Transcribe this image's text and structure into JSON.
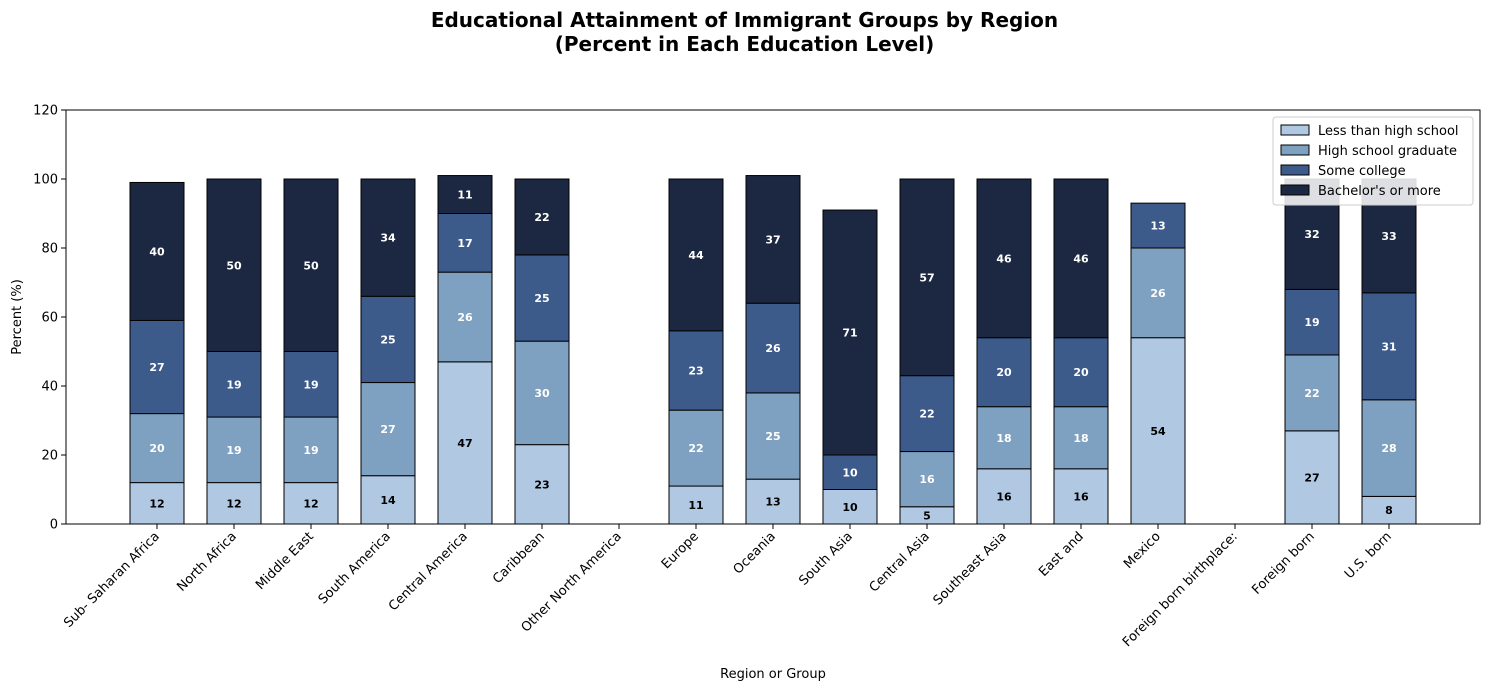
{
  "chart_data": {
    "type": "bar",
    "stacked": true,
    "title_line1": "Educational Attainment of Immigrant Groups by Region",
    "title_line2": "(Percent in Each Education Level)",
    "xlabel": "Region or Group",
    "ylabel": "Percent (%)",
    "ylim": [
      0,
      120
    ],
    "yticks": [
      0,
      20,
      40,
      60,
      80,
      100,
      120
    ],
    "grid": false,
    "legend_position": "top-right",
    "categories": [
      "Sub- Saharan Africa",
      "North Africa",
      "Middle East",
      "South America",
      "Central America",
      "Caribbean",
      "Other North America",
      "Europe",
      "Oceania",
      "South Asia",
      "Central Asia",
      "Southeast Asia",
      "East and",
      "Mexico",
      "Foreign born birthplace:",
      "Foreign born",
      "U.S. born"
    ],
    "series": [
      {
        "name": "Less than high school",
        "color": "#b0c8e2",
        "label_color": "#000000",
        "values": [
          12,
          12,
          12,
          14,
          47,
          23,
          0,
          11,
          13,
          10,
          5,
          16,
          16,
          54,
          0,
          27,
          8
        ]
      },
      {
        "name": "High school graduate",
        "color": "#7fa1c1",
        "label_color": "#ffffff",
        "values": [
          20,
          19,
          19,
          27,
          26,
          30,
          0,
          22,
          25,
          0,
          16,
          18,
          18,
          26,
          0,
          22,
          28
        ]
      },
      {
        "name": "Some college",
        "color": "#3c5a8a",
        "label_color": "#ffffff",
        "values": [
          27,
          19,
          19,
          25,
          17,
          25,
          0,
          23,
          26,
          10,
          22,
          20,
          20,
          13,
          0,
          19,
          31
        ]
      },
      {
        "name": "Bachelor's or more",
        "color": "#1c2841",
        "label_color": "#ffffff",
        "values": [
          40,
          50,
          50,
          34,
          11,
          22,
          0,
          44,
          37,
          71,
          57,
          46,
          46,
          0,
          0,
          32,
          33
        ]
      }
    ]
  }
}
